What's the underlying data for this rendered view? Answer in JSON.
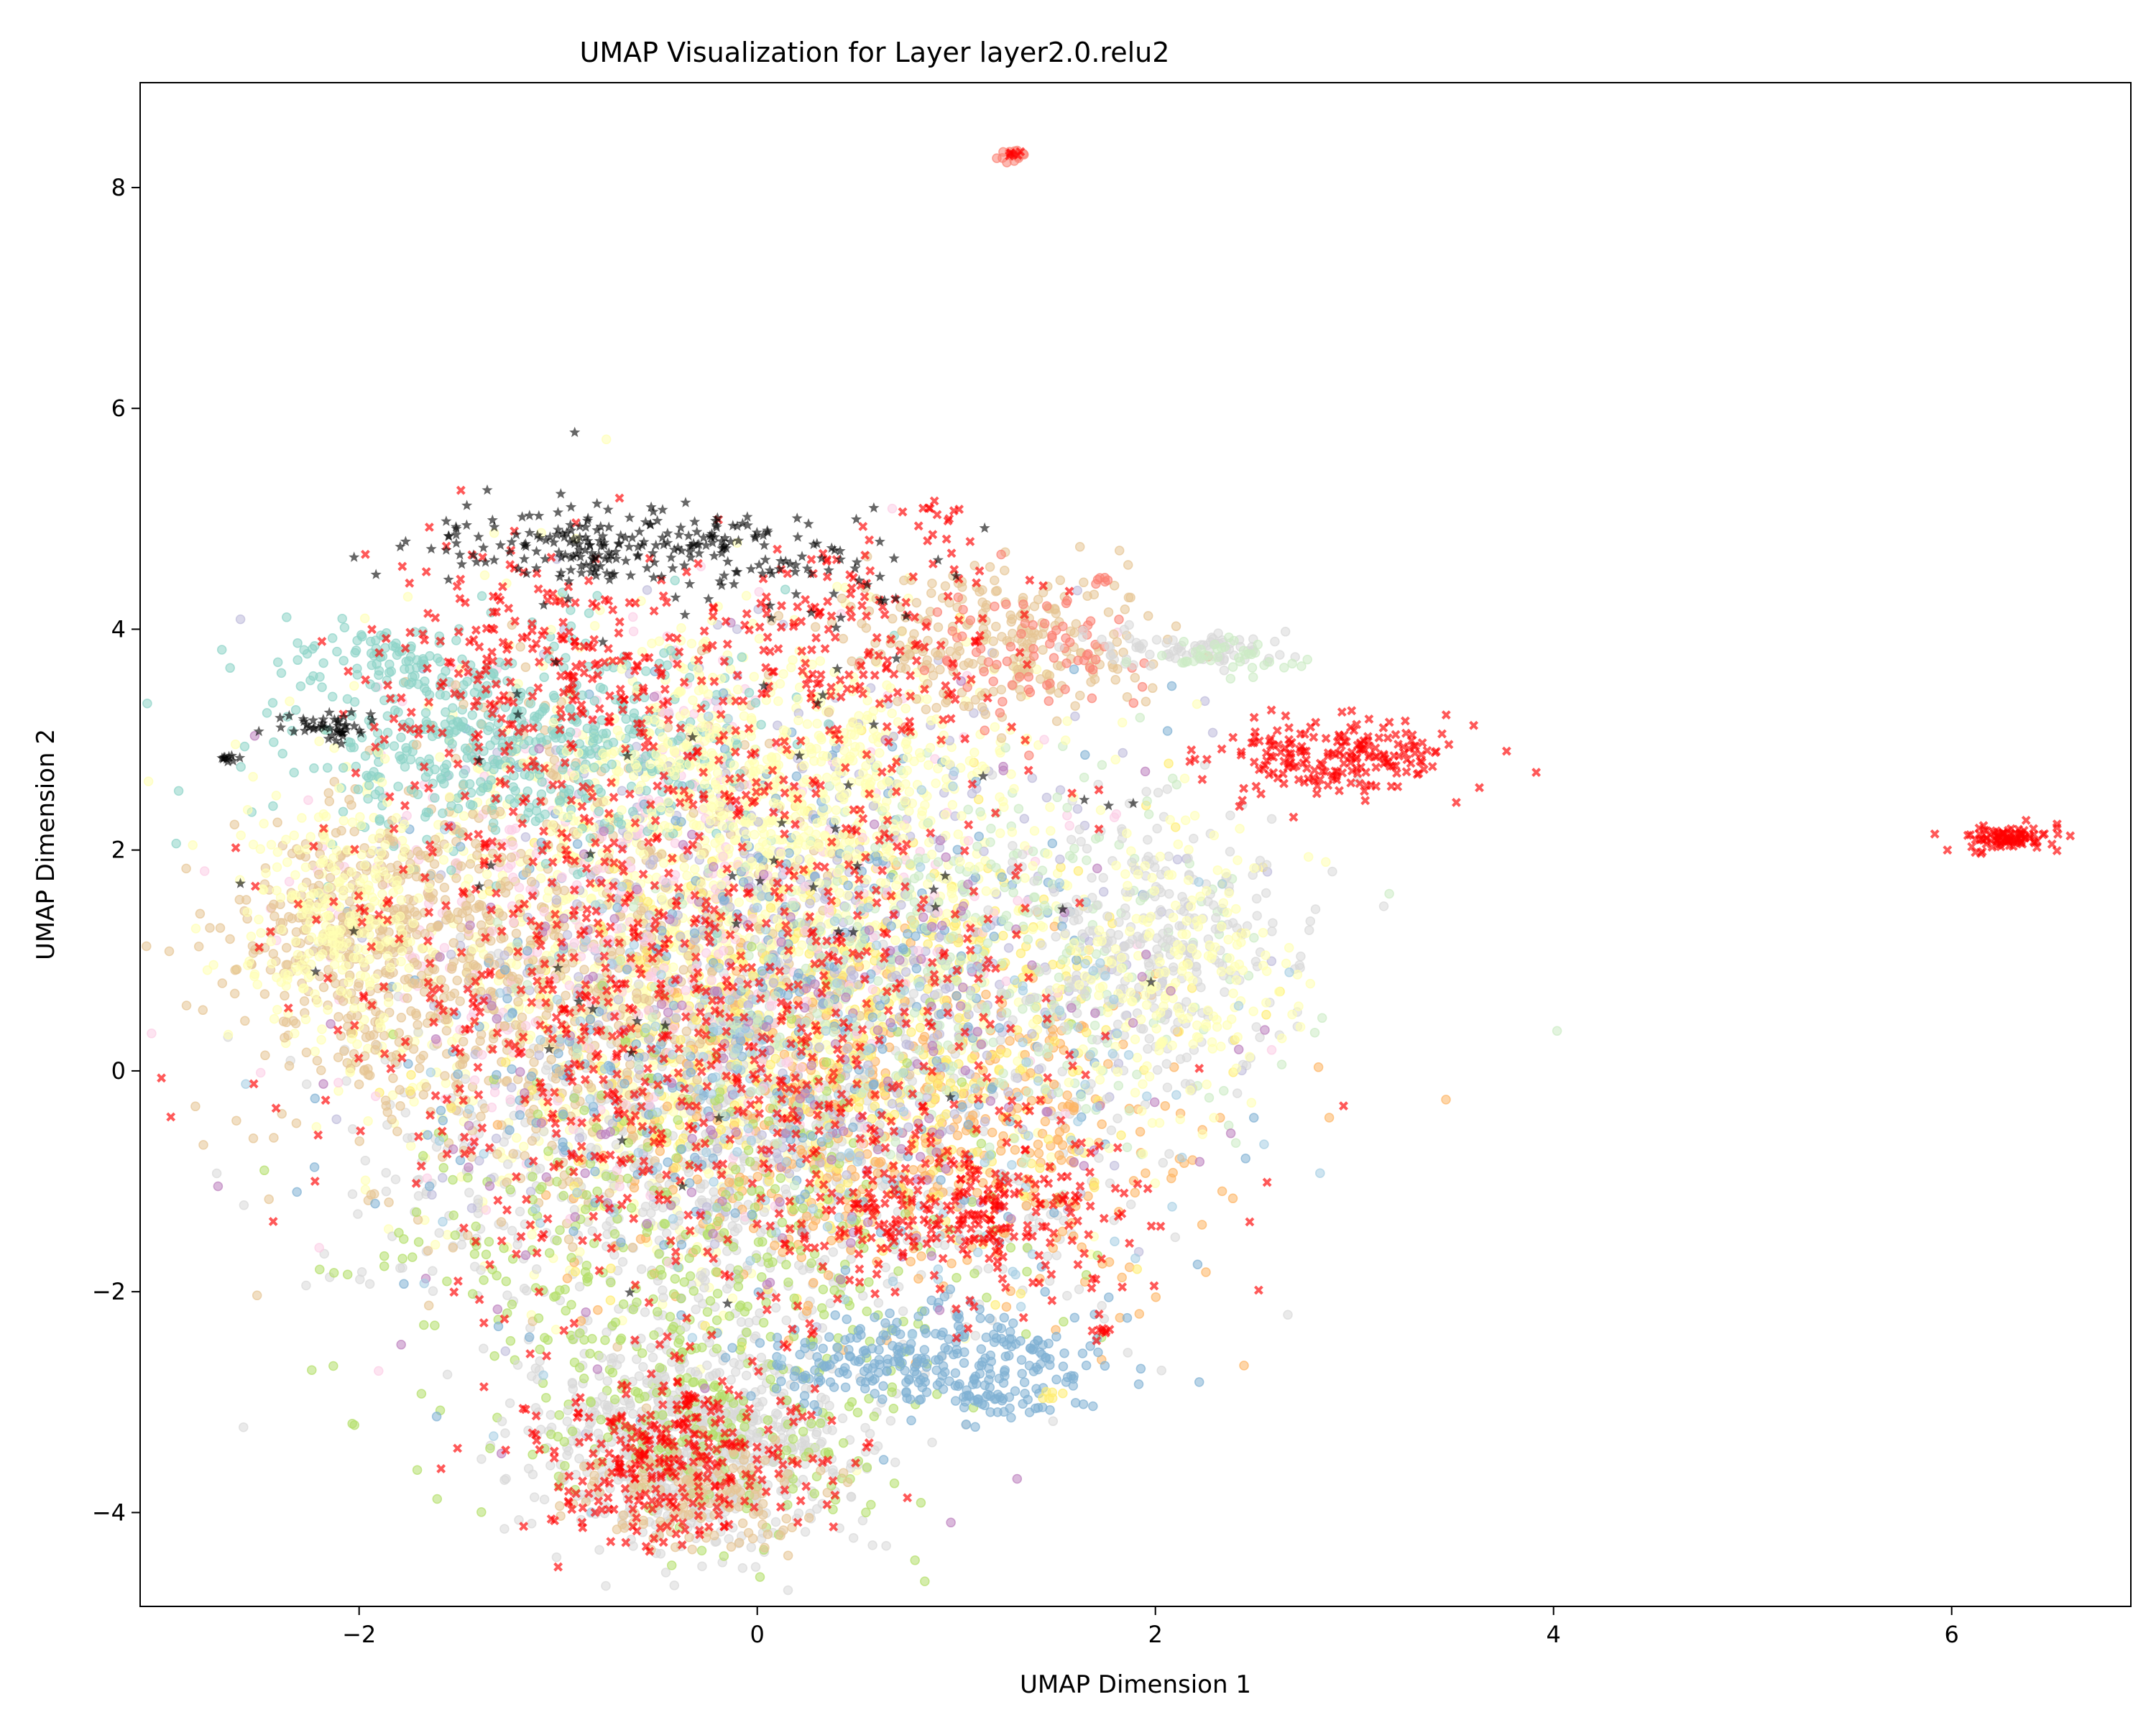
{
  "chart_data": {
    "type": "scatter",
    "title": "UMAP Visualization for Layer layer2.0.relu2",
    "xlabel": "UMAP Dimension 1",
    "ylabel": "UMAP Dimension 2",
    "xlim": [
      -3.1,
      6.9
    ],
    "ylim": [
      -4.85,
      8.95
    ],
    "xticks": [
      -2,
      0,
      2,
      4,
      6
    ],
    "yticks": [
      -4,
      -2,
      0,
      2,
      4,
      6,
      8
    ],
    "grid": false,
    "legend": "none",
    "marker_colors": {
      "red_cross": "#ff0000",
      "black_star": "#000000",
      "circles": [
        "#8dd3c7",
        "#ffffb3",
        "#bebada",
        "#fb8072",
        "#80b1d3",
        "#fdb462",
        "#b3de69",
        "#fccde5",
        "#d9d9d9",
        "#bc80bd",
        "#ccebc5",
        "#ffed6f",
        "#a6cee3",
        "#e5c494"
      ]
    },
    "clusters": [
      {
        "marker": "circle",
        "color": "#ffffb3",
        "cx": -0.3,
        "cy": 1.0,
        "sx": 0.85,
        "sy": 1.3,
        "n": 1400
      },
      {
        "marker": "circle",
        "color": "#d9d9d9",
        "cx": -0.1,
        "cy": -0.8,
        "sx": 0.9,
        "sy": 1.0,
        "n": 900
      },
      {
        "marker": "circle",
        "color": "#e5c494",
        "cx": -0.9,
        "cy": 0.9,
        "sx": 0.7,
        "sy": 1.1,
        "n": 700
      },
      {
        "marker": "circle",
        "color": "#fdb462",
        "cx": 0.8,
        "cy": -0.6,
        "sx": 0.8,
        "sy": 0.8,
        "n": 500
      },
      {
        "marker": "circle",
        "color": "#ffed6f",
        "cx": 0.5,
        "cy": 0.3,
        "sx": 0.8,
        "sy": 1.0,
        "n": 500
      },
      {
        "marker": "circle",
        "color": "#bebada",
        "cx": 0.2,
        "cy": 1.2,
        "sx": 0.9,
        "sy": 1.3,
        "n": 500
      },
      {
        "marker": "circle",
        "color": "#b3de69",
        "cx": -0.3,
        "cy": -1.5,
        "sx": 0.8,
        "sy": 1.0,
        "n": 400
      },
      {
        "marker": "circle",
        "color": "#fccde5",
        "cx": -0.5,
        "cy": 1.5,
        "sx": 0.9,
        "sy": 1.2,
        "n": 400
      },
      {
        "marker": "circle",
        "color": "#80b1d3",
        "cx": 0.0,
        "cy": 0.5,
        "sx": 0.9,
        "sy": 1.3,
        "n": 350
      },
      {
        "marker": "circle",
        "color": "#ccebc5",
        "cx": 0.9,
        "cy": 1.0,
        "sx": 0.8,
        "sy": 0.9,
        "n": 400
      },
      {
        "marker": "circle",
        "color": "#8dd3c7",
        "cx": -1.2,
        "cy": 3.0,
        "sx": 0.55,
        "sy": 0.5,
        "n": 550
      },
      {
        "marker": "circle",
        "color": "#8dd3c7",
        "cx": -1.9,
        "cy": 3.75,
        "sx": 0.2,
        "sy": 0.15,
        "n": 60
      },
      {
        "marker": "circle",
        "color": "#ffffb3",
        "cx": 0.2,
        "cy": 2.7,
        "sx": 0.6,
        "sy": 0.6,
        "n": 500
      },
      {
        "marker": "circle",
        "color": "#e5c494",
        "cx": -1.9,
        "cy": 1.2,
        "sx": 0.35,
        "sy": 0.6,
        "n": 400
      },
      {
        "marker": "circle",
        "color": "#ffffb3",
        "cx": -2.1,
        "cy": 1.4,
        "sx": 0.25,
        "sy": 0.5,
        "n": 250
      },
      {
        "marker": "circle",
        "color": "#d9d9d9",
        "cx": 2.0,
        "cy": 1.2,
        "sx": 0.35,
        "sy": 0.6,
        "n": 300
      },
      {
        "marker": "circle",
        "color": "#ffffb3",
        "cx": 2.1,
        "cy": 0.8,
        "sx": 0.3,
        "sy": 0.6,
        "n": 200
      },
      {
        "marker": "circle",
        "color": "#d9d9d9",
        "cx": -0.3,
        "cy": -3.4,
        "sx": 0.4,
        "sy": 0.45,
        "n": 700
      },
      {
        "marker": "circle",
        "color": "#b3de69",
        "cx": -0.2,
        "cy": -3.2,
        "sx": 0.45,
        "sy": 0.5,
        "n": 200
      },
      {
        "marker": "circle",
        "color": "#e5c494",
        "cx": -0.3,
        "cy": -3.8,
        "sx": 0.3,
        "sy": 0.25,
        "n": 150
      },
      {
        "marker": "circle",
        "color": "#80b1d3",
        "cx": 0.9,
        "cy": -2.6,
        "sx": 0.45,
        "sy": 0.22,
        "n": 280
      },
      {
        "marker": "circle",
        "color": "#80b1d3",
        "cx": 1.2,
        "cy": -2.95,
        "sx": 0.15,
        "sy": 0.1,
        "n": 40
      },
      {
        "marker": "circle",
        "color": "#e5c494",
        "cx": 1.2,
        "cy": 3.9,
        "sx": 0.4,
        "sy": 0.35,
        "n": 250
      },
      {
        "marker": "circle",
        "color": "#fb8072",
        "cx": 1.4,
        "cy": 3.8,
        "sx": 0.3,
        "sy": 0.3,
        "n": 80
      },
      {
        "marker": "circle",
        "color": "#d9d9d9",
        "cx": 2.2,
        "cy": 3.8,
        "sx": 0.3,
        "sy": 0.08,
        "n": 80
      },
      {
        "marker": "circle",
        "color": "#ccebc5",
        "cx": 2.4,
        "cy": 3.75,
        "sx": 0.2,
        "sy": 0.08,
        "n": 40
      },
      {
        "marker": "circle",
        "color": "#fb8072",
        "cx": 1.28,
        "cy": 8.3,
        "sx": 0.04,
        "sy": 0.03,
        "n": 15
      },
      {
        "marker": "circle",
        "color": "#fb8072",
        "cx": 1.72,
        "cy": 4.45,
        "sx": 0.03,
        "sy": 0.03,
        "n": 6
      },
      {
        "marker": "circle",
        "color": "#ffed6f",
        "cx": 1.47,
        "cy": -2.95,
        "sx": 0.03,
        "sy": 0.02,
        "n": 6
      },
      {
        "marker": "circle",
        "color": "#bc80bd",
        "cx": 0.2,
        "cy": 0.2,
        "sx": 1.0,
        "sy": 1.3,
        "n": 200
      },
      {
        "marker": "circle",
        "color": "#a6cee3",
        "cx": 0.4,
        "cy": -0.2,
        "sx": 1.0,
        "sy": 1.2,
        "n": 200
      },
      {
        "marker": "cross",
        "color": "#ff0000",
        "cx": -0.3,
        "cy": 0.6,
        "sx": 0.9,
        "sy": 1.5,
        "n": 900
      },
      {
        "marker": "cross",
        "color": "#ff0000",
        "cx": 1.1,
        "cy": -1.3,
        "sx": 0.4,
        "sy": 0.35,
        "n": 250
      },
      {
        "marker": "cross",
        "color": "#ff0000",
        "cx": -0.4,
        "cy": -3.5,
        "sx": 0.35,
        "sy": 0.4,
        "n": 300
      },
      {
        "marker": "cross",
        "color": "#ff0000",
        "cx": -1.1,
        "cy": 3.6,
        "sx": 0.5,
        "sy": 0.6,
        "n": 250
      },
      {
        "marker": "cross",
        "color": "#ff0000",
        "cx": 0.5,
        "cy": 3.9,
        "sx": 0.4,
        "sy": 0.5,
        "n": 150
      },
      {
        "marker": "cross",
        "color": "#ff0000",
        "cx": 2.9,
        "cy": 2.85,
        "sx": 0.32,
        "sy": 0.18,
        "n": 200
      },
      {
        "marker": "cross",
        "color": "#ff0000",
        "cx": 6.25,
        "cy": 2.12,
        "sx": 0.12,
        "sy": 0.06,
        "n": 90
      },
      {
        "marker": "cross",
        "color": "#ff0000",
        "cx": 1.72,
        "cy": -2.35,
        "sx": 0.03,
        "sy": 0.03,
        "n": 8
      },
      {
        "marker": "cross",
        "color": "#ff0000",
        "cx": 1.28,
        "cy": 8.3,
        "sx": 0.03,
        "sy": 0.02,
        "n": 6
      },
      {
        "marker": "cross",
        "color": "#ff0000",
        "cx": 0.9,
        "cy": 5.0,
        "sx": 0.1,
        "sy": 0.08,
        "n": 12
      },
      {
        "marker": "star",
        "color": "#000000",
        "cx": -0.6,
        "cy": 4.75,
        "sx": 0.55,
        "sy": 0.17,
        "n": 220
      },
      {
        "marker": "star",
        "color": "#000000",
        "cx": -2.15,
        "cy": 3.12,
        "sx": 0.12,
        "sy": 0.07,
        "n": 45
      },
      {
        "marker": "star",
        "color": "#000000",
        "cx": -2.65,
        "cy": 2.83,
        "sx": 0.04,
        "sy": 0.02,
        "n": 10
      },
      {
        "marker": "star",
        "color": "#000000",
        "cx": -0.2,
        "cy": 2.0,
        "sx": 1.0,
        "sy": 1.6,
        "n": 60
      },
      {
        "marker": "star",
        "color": "#000000",
        "cx": 0.3,
        "cy": 4.4,
        "sx": 0.4,
        "sy": 0.3,
        "n": 40
      }
    ]
  }
}
